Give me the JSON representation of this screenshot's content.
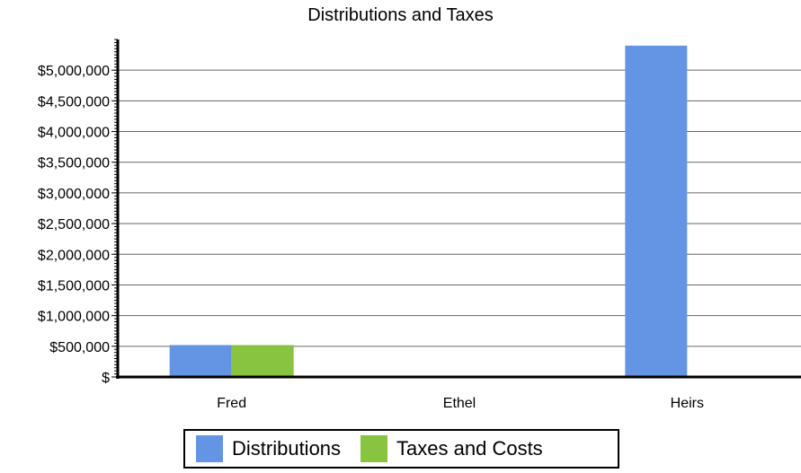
{
  "chart_data": {
    "type": "bar",
    "title": "Distributions and Taxes",
    "xlabel": "",
    "ylabel": "",
    "categories": [
      "Fred",
      "Ethel",
      "Heirs"
    ],
    "series": [
      {
        "name": "Distributions",
        "values": [
          520000,
          20000,
          5400000
        ],
        "color": "#6495e5"
      },
      {
        "name": "Taxes and Costs",
        "values": [
          520000,
          20000,
          20000
        ],
        "color": "#88c440"
      }
    ],
    "ylim": [
      0,
      5500000
    ],
    "yticks": [
      0,
      500000,
      1000000,
      1500000,
      2000000,
      2500000,
      3000000,
      3500000,
      4000000,
      4500000,
      5000000
    ],
    "ytick_labels": [
      "$",
      "$500,000",
      "$1,000,000",
      "$1,500,000",
      "$2,000,000",
      "$2,500,000",
      "$3,000,000",
      "$3,500,000",
      "$4,000,000",
      "$4,500,000",
      "$5,000,000"
    ],
    "grid": true,
    "legend_position": "bottom"
  }
}
